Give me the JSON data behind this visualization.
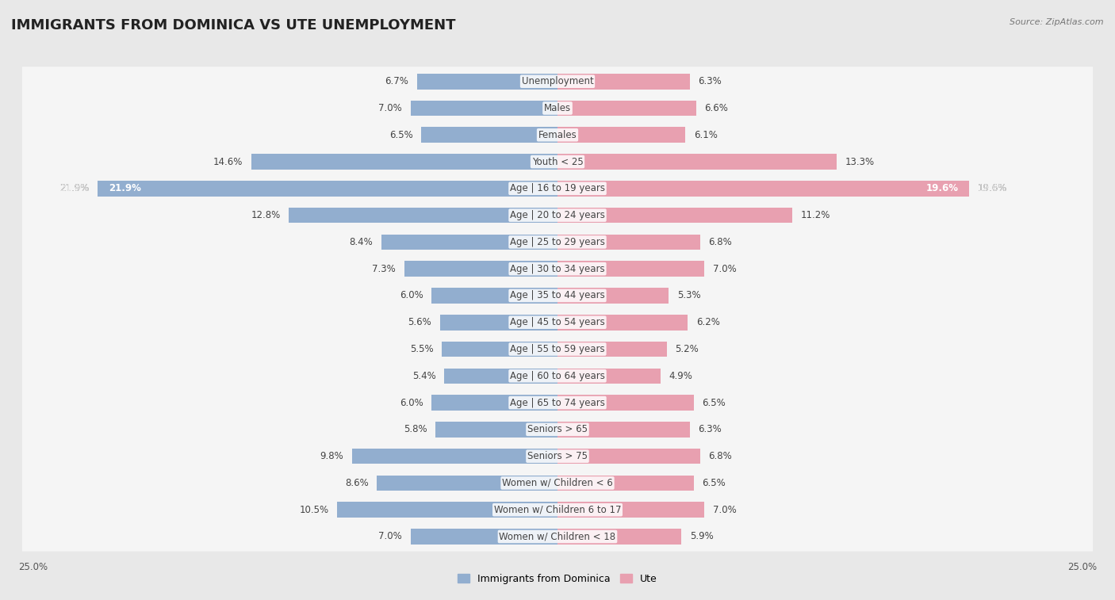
{
  "title": "IMMIGRANTS FROM DOMINICA VS UTE UNEMPLOYMENT",
  "source": "Source: ZipAtlas.com",
  "categories": [
    "Unemployment",
    "Males",
    "Females",
    "Youth < 25",
    "Age | 16 to 19 years",
    "Age | 20 to 24 years",
    "Age | 25 to 29 years",
    "Age | 30 to 34 years",
    "Age | 35 to 44 years",
    "Age | 45 to 54 years",
    "Age | 55 to 59 years",
    "Age | 60 to 64 years",
    "Age | 65 to 74 years",
    "Seniors > 65",
    "Seniors > 75",
    "Women w/ Children < 6",
    "Women w/ Children 6 to 17",
    "Women w/ Children < 18"
  ],
  "left_values": [
    6.7,
    7.0,
    6.5,
    14.6,
    21.9,
    12.8,
    8.4,
    7.3,
    6.0,
    5.6,
    5.5,
    5.4,
    6.0,
    5.8,
    9.8,
    8.6,
    10.5,
    7.0
  ],
  "right_values": [
    6.3,
    6.6,
    6.1,
    13.3,
    19.6,
    11.2,
    6.8,
    7.0,
    5.3,
    6.2,
    5.2,
    4.9,
    6.5,
    6.3,
    6.8,
    6.5,
    7.0,
    5.9
  ],
  "left_color": "#92AECF",
  "right_color": "#E8A0B0",
  "left_label": "Immigrants from Dominica",
  "right_label": "Ute",
  "xlim": 25.0,
  "bg_color": "#e8e8e8",
  "row_bg_color": "#f5f5f5",
  "title_fontsize": 13,
  "label_fontsize": 8.5,
  "value_fontsize": 8.5,
  "axis_label_fontsize": 8.5
}
